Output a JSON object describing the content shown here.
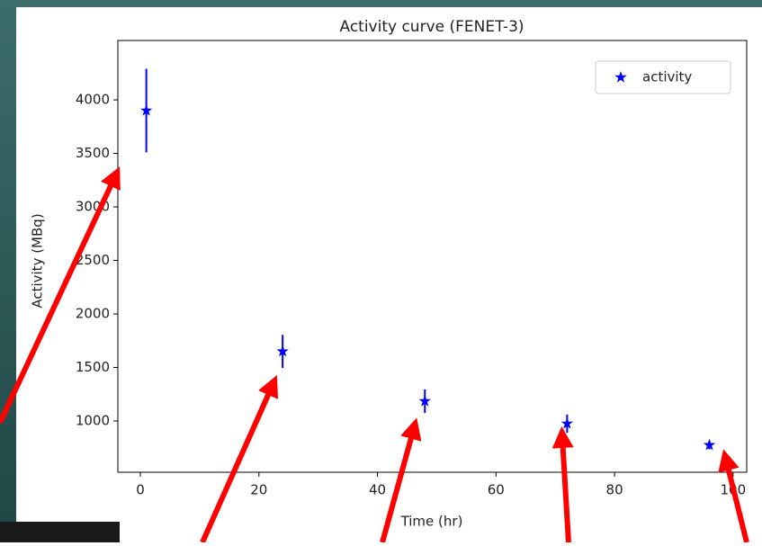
{
  "chart_data": {
    "type": "scatter",
    "title": "Activity curve (FENET-3)",
    "xlabel": "Time (hr)",
    "ylabel": "Activity (MBq)",
    "x": [
      1,
      24,
      48,
      72,
      96
    ],
    "series": [
      {
        "name": "activity",
        "color": "#0000ff",
        "values": [
          3900,
          1650,
          1185,
          975,
          775
        ],
        "errors": [
          390,
          155,
          110,
          85,
          40
        ]
      }
    ],
    "xlim": [
      -3.8,
      102.3
    ],
    "xticks": [
      0,
      20,
      40,
      60,
      80,
      100
    ],
    "ylim": [
      521,
      4555
    ],
    "yticks": [
      1000,
      1500,
      2000,
      2500,
      3000,
      3500,
      4000
    ],
    "legend": "upper right"
  }
}
